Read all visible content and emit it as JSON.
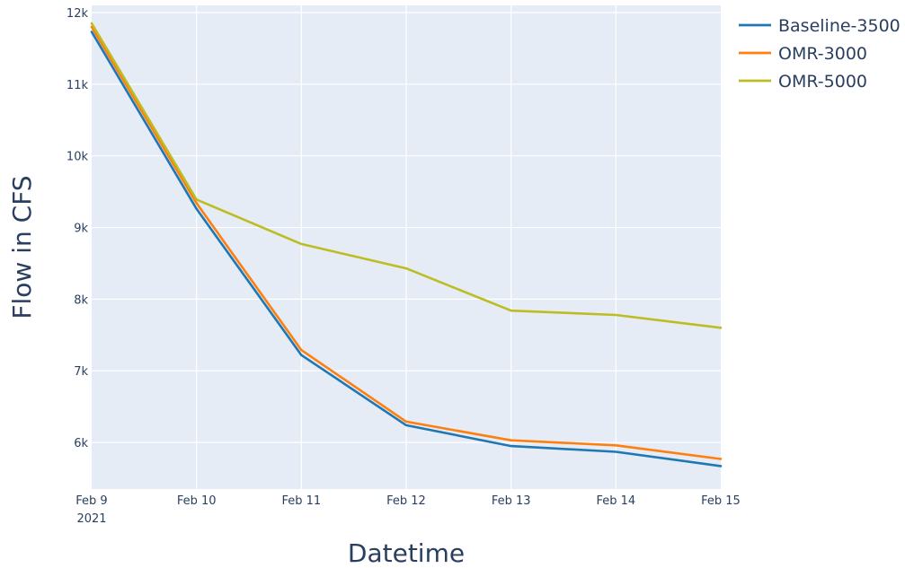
{
  "chart_data": {
    "type": "line",
    "x": [
      "Feb 9",
      "Feb 10",
      "Feb 11",
      "Feb 12",
      "Feb 13",
      "Feb 14",
      "Feb 15"
    ],
    "x_year_label": "2021",
    "xlabel": "Datetime",
    "ylabel": "Flow in CFS",
    "ylim": [
      5350,
      12100
    ],
    "yticks": [
      6000,
      7000,
      8000,
      9000,
      10000,
      11000,
      12000
    ],
    "ytick_labels": [
      "6k",
      "7k",
      "8k",
      "9k",
      "10k",
      "11k",
      "12k"
    ],
    "grid": true,
    "legend_position": "top-right",
    "plot_background": "#e5ecf6",
    "series": [
      {
        "name": "Baseline-3500",
        "color": "#1f77b4",
        "values": [
          11730,
          9260,
          7220,
          6240,
          5950,
          5870,
          5670
        ]
      },
      {
        "name": "OMR-3000",
        "color": "#ff7f0e",
        "values": [
          11800,
          9340,
          7290,
          6290,
          6030,
          5960,
          5770
        ]
      },
      {
        "name": "OMR-5000",
        "color": "#bcbd22",
        "values": [
          11850,
          9390,
          8770,
          8430,
          7840,
          7780,
          7600
        ]
      }
    ]
  }
}
